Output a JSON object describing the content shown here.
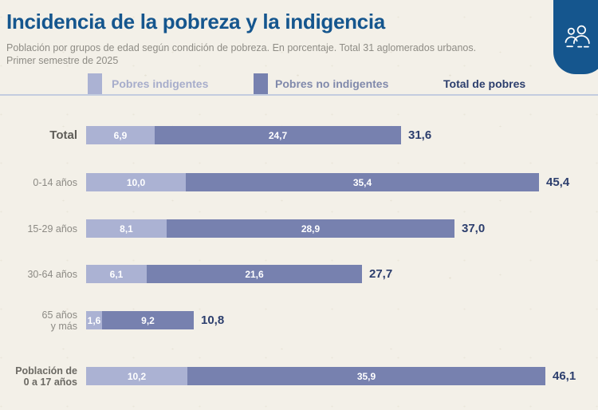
{
  "header": {
    "title": "Incidencia de la pobreza y la indigencia",
    "subtitle_line1": "Población por grupos de edad según condición de pobreza. En porcentaje. Total 31 aglomerados urbanos.",
    "subtitle_line2": "Primer semestre de 2025"
  },
  "badge": {
    "icon": "people-group-icon",
    "color": "#15568e"
  },
  "theme": {
    "background": "#f3f0e8",
    "title_color": "#15568e",
    "divider_color": "#c3ccdf",
    "total_text_color": "#2c3e6d"
  },
  "legend": {
    "position": "top",
    "items": [
      {
        "label": "Pobres indigentes",
        "swatch": "#abb2d3"
      },
      {
        "label": "Pobres no indigentes",
        "swatch": "#7781af"
      },
      {
        "label": "Total de pobres",
        "swatch": null
      }
    ]
  },
  "chart_data": {
    "type": "bar",
    "orientation": "horizontal",
    "stacked": true,
    "unit": "percent",
    "xlim": [
      0,
      50
    ],
    "grid": false,
    "legend_position": "top",
    "categories": [
      "Total",
      "0-14 años",
      "15-29 años",
      "30-64 años",
      "65 años y más",
      "Población de 0 a 17 años"
    ],
    "category_display": [
      [
        "Total"
      ],
      [
        "0-14 años"
      ],
      [
        "15-29 años"
      ],
      [
        "30-64 años"
      ],
      [
        "65 años",
        "y más"
      ],
      [
        "Población de",
        "0 a 17 años"
      ]
    ],
    "series": [
      {
        "name": "Pobres indigentes",
        "color": "#abb2d3",
        "values": [
          6.9,
          10.0,
          8.1,
          6.1,
          1.6,
          10.2
        ]
      },
      {
        "name": "Pobres no indigentes",
        "color": "#7781af",
        "values": [
          24.7,
          35.4,
          28.9,
          21.6,
          9.2,
          35.9
        ]
      }
    ],
    "totals": [
      31.6,
      45.4,
      37.0,
      27.7,
      10.8,
      46.1
    ],
    "segment_labels": [
      [
        "6,9",
        "24,7"
      ],
      [
        "10,0",
        "35,4"
      ],
      [
        "8,1",
        "28,9"
      ],
      [
        "6,1",
        "21,6"
      ],
      [
        "1,6",
        "9,2"
      ],
      [
        "10,2",
        "35,9"
      ]
    ],
    "total_labels": [
      "31,6",
      "45,4",
      "37,0",
      "27,7",
      "10,8",
      "46,1"
    ]
  }
}
